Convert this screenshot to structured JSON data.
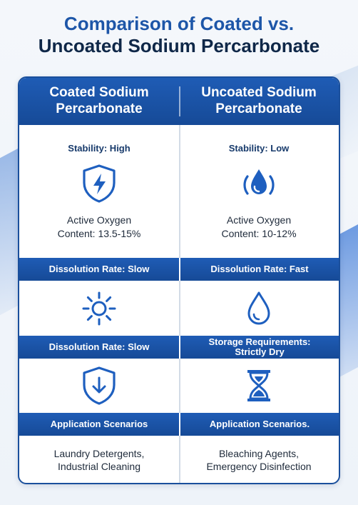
{
  "title": {
    "line1": "Comparison of Coated vs.",
    "line2": "Uncoated Sodium Percarbonate"
  },
  "columns": {
    "coated": {
      "header": "Coated Sodium Percarbonate",
      "stability_label": "Stability: High",
      "stability_icon": "shield-lightning-icon",
      "active_oxygen": "Active Oxygen Content: 13.5-15%",
      "band1": "Dissolution Rate: Slow",
      "icon2": "sun-icon",
      "band2": "Dissolution Rate: Slow",
      "icon3": "shield-check-icon",
      "band3": "Application Scenarios",
      "applications": "Laundry Detergents, Industrial Cleaning"
    },
    "uncoated": {
      "header": "Uncoated Sodium Percarbonate",
      "stability_label": "Stability: Low",
      "stability_icon": "water-drop-circle-icon",
      "active_oxygen": "Active Oxygen Content: 10-12%",
      "band1": "Dissolution Rate: Fast",
      "icon2": "water-drop-icon",
      "band2": "Storage Requirements: Strictly Dry",
      "icon3": "hourglass-icon",
      "band3": "Application Scenarios.",
      "applications": "Bleaching Agents, Emergency Disinfection"
    }
  },
  "colors": {
    "primary": "#1f5cb5",
    "dark_blue": "#0f2748",
    "title_blue": "#1d56a8",
    "icon_blue": "#1e5fbf"
  }
}
